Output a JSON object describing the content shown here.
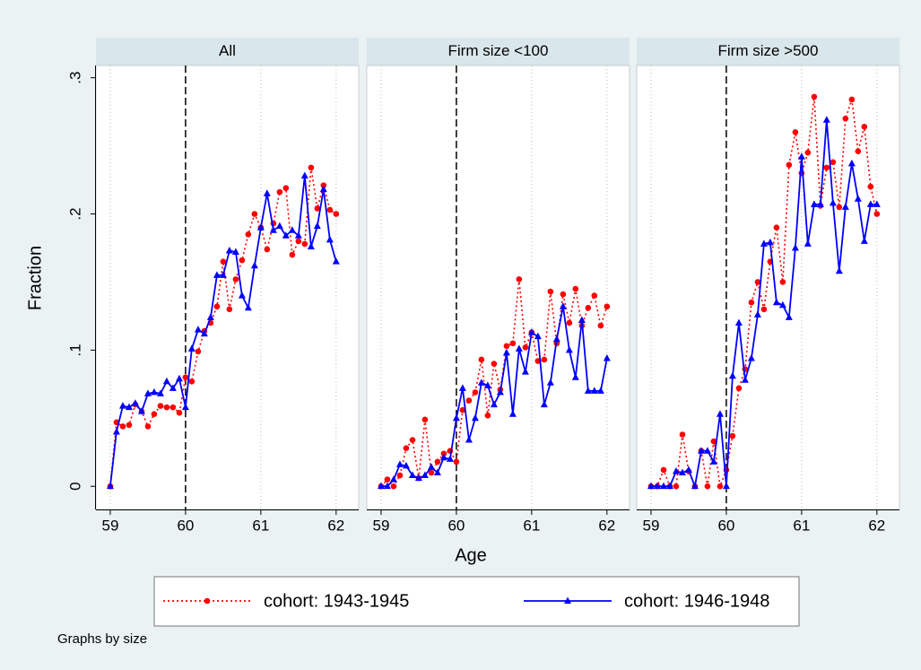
{
  "ylabel": "Fraction",
  "xlabel": "Age",
  "note": "Graphs by size",
  "chart_data": [
    {
      "type": "line",
      "title": "All",
      "vline": 60,
      "grid": true,
      "x": [
        59,
        59.083,
        59.167,
        59.25,
        59.333,
        59.417,
        59.5,
        59.583,
        59.667,
        59.75,
        59.833,
        59.917,
        60,
        60.083,
        60.167,
        60.25,
        60.333,
        60.417,
        60.5,
        60.583,
        60.667,
        60.75,
        60.833,
        60.917,
        61,
        61.083,
        61.167,
        61.25,
        61.333,
        61.417,
        61.5,
        61.583,
        61.667,
        61.75,
        61.833,
        61.917,
        62
      ],
      "xlim": [
        58.81,
        62.3
      ],
      "xticks": [
        59,
        60,
        61,
        62
      ],
      "ylim": [
        -0.017,
        0.309
      ],
      "yticks": [
        0,
        {
          "value": 0.1,
          "label": ".1"
        },
        {
          "value": 0.2,
          "label": ".2"
        },
        {
          "value": 0.3,
          "label": ".3"
        }
      ],
      "series": [
        {
          "name": "cohort: 1943-1945",
          "color": "#ff0000",
          "marker": "circle",
          "dash": "dotted",
          "values": [
            0,
            0.047,
            0.044,
            0.045,
            0.06,
            0.055,
            0.044,
            0.053,
            0.059,
            0.058,
            0.058,
            0.054,
            0.08,
            0.077,
            0.099,
            0.114,
            0.12,
            0.132,
            0.165,
            0.13,
            0.152,
            0.166,
            0.185,
            0.2,
            0.19,
            0.174,
            0.193,
            0.216,
            0.219,
            0.17,
            0.18,
            0.178,
            0.234,
            0.204,
            0.221,
            0.203,
            0.2
          ]
        },
        {
          "name": "cohort: 1946-1948",
          "color": "#0000ff",
          "marker": "triangle",
          "dash": "solid",
          "values": [
            0,
            0.04,
            0.059,
            0.058,
            0.061,
            0.055,
            0.068,
            0.069,
            0.068,
            0.077,
            0.072,
            0.079,
            0.058,
            0.101,
            0.115,
            0.112,
            0.124,
            0.155,
            0.155,
            0.173,
            0.172,
            0.14,
            0.131,
            0.162,
            0.19,
            0.215,
            0.188,
            0.191,
            0.184,
            0.188,
            0.184,
            0.228,
            0.176,
            0.191,
            0.218,
            0.181,
            0.165
          ]
        }
      ]
    },
    {
      "type": "line",
      "title": "Firm size <100",
      "vline": 60,
      "grid": true,
      "x": [
        59,
        59.083,
        59.167,
        59.25,
        59.333,
        59.417,
        59.5,
        59.583,
        59.667,
        59.75,
        59.833,
        59.917,
        60,
        60.083,
        60.167,
        60.25,
        60.333,
        60.417,
        60.5,
        60.583,
        60.667,
        60.75,
        60.833,
        60.917,
        61,
        61.083,
        61.167,
        61.25,
        61.333,
        61.417,
        61.5,
        61.583,
        61.667,
        61.75,
        61.833,
        61.917,
        62
      ],
      "xlim": [
        58.81,
        62.3
      ],
      "xticks": [
        59,
        60,
        61,
        62
      ],
      "ylim": [
        -0.017,
        0.309
      ],
      "series": [
        {
          "name": "cohort: 1943-1945",
          "color": "#ff0000",
          "marker": "circle",
          "dash": "dotted",
          "values": [
            0,
            0.005,
            0,
            0.008,
            0.028,
            0.034,
            0.006,
            0.049,
            0.01,
            0.018,
            0.024,
            0.026,
            0.018,
            0.056,
            0.063,
            0.069,
            0.093,
            0.052,
            0.09,
            0.071,
            0.103,
            0.105,
            0.152,
            0.102,
            0.113,
            0.092,
            0.093,
            0.143,
            0.105,
            0.141,
            0.12,
            0.145,
            0.118,
            0.131,
            0.14,
            0.118,
            0.132
          ]
        },
        {
          "name": "cohort: 1946-1948",
          "color": "#0000ff",
          "marker": "triangle",
          "dash": "solid",
          "values": [
            0,
            0,
            0.005,
            0.016,
            0.015,
            0.008,
            0.006,
            0.008,
            0.014,
            0.01,
            0.021,
            0.02,
            0.05,
            0.072,
            0.034,
            0.05,
            0.076,
            0.074,
            0.06,
            0.069,
            0.098,
            0.053,
            0.101,
            0.084,
            0.113,
            0.11,
            0.06,
            0.076,
            0.108,
            0.132,
            0.1,
            0.08,
            0.122,
            0.07,
            0.07,
            0.07,
            0.094
          ]
        }
      ]
    },
    {
      "type": "line",
      "title": "Firm size >500",
      "vline": 60,
      "grid": true,
      "x": [
        59,
        59.083,
        59.167,
        59.25,
        59.333,
        59.417,
        59.5,
        59.583,
        59.667,
        59.75,
        59.833,
        59.917,
        60,
        60.083,
        60.167,
        60.25,
        60.333,
        60.417,
        60.5,
        60.583,
        60.667,
        60.75,
        60.833,
        60.917,
        61,
        61.083,
        61.167,
        61.25,
        61.333,
        61.417,
        61.5,
        61.583,
        61.667,
        61.75,
        61.833,
        61.917,
        62
      ],
      "xlim": [
        58.81,
        62.3
      ],
      "xticks": [
        59,
        60,
        61,
        62
      ],
      "ylim": [
        -0.017,
        0.309
      ],
      "series": [
        {
          "name": "cohort: 1943-1945",
          "color": "#ff0000",
          "marker": "circle",
          "dash": "dotted",
          "values": [
            0,
            0,
            0.012,
            0,
            0,
            0.038,
            0.011,
            0,
            0.026,
            0,
            0.033,
            0,
            0.012,
            0.037,
            0.072,
            0.086,
            0.135,
            0.15,
            0.13,
            0.165,
            0.19,
            0.15,
            0.236,
            0.26,
            0.23,
            0.245,
            0.286,
            0.206,
            0.234,
            0.238,
            0.205,
            0.27,
            0.284,
            0.246,
            0.264,
            0.22,
            0.2
          ]
        },
        {
          "name": "cohort: 1946-1948",
          "color": "#0000ff",
          "marker": "triangle",
          "dash": "solid",
          "values": [
            0,
            0,
            0,
            0,
            0.011,
            0.01,
            0.012,
            0,
            0.026,
            0.026,
            0.018,
            0.053,
            0,
            0.081,
            0.12,
            0.078,
            0.094,
            0.126,
            0.178,
            0.179,
            0.135,
            0.133,
            0.124,
            0.175,
            0.242,
            0.178,
            0.207,
            0.207,
            0.269,
            0.208,
            0.158,
            0.205,
            0.237,
            0.211,
            0.18,
            0.207,
            0.207
          ]
        }
      ]
    }
  ]
}
